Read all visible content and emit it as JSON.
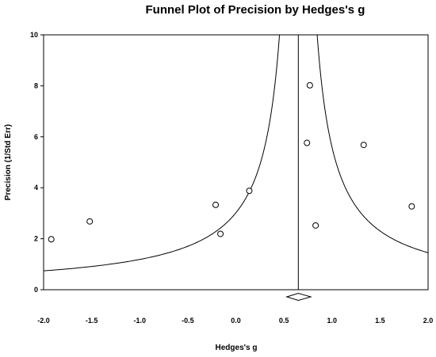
{
  "chart_data": {
    "type": "scatter",
    "title": "Funnel Plot of Precision by Hedges's g",
    "xlabel": "Hedges's g",
    "ylabel": "Precision (1/Std Err)",
    "xlim": [
      -2.0,
      2.0
    ],
    "ylim": [
      0,
      10
    ],
    "xticks": [
      "-2.0",
      "-1.5",
      "-1.0",
      "-0.5",
      "0.0",
      "0.5",
      "1.0",
      "1.5",
      "2.0"
    ],
    "yticks": [
      "0",
      "2",
      "4",
      "6",
      "8",
      "10"
    ],
    "grid": false,
    "pooled_estimate": 0.65,
    "diamond": {
      "center": 0.65,
      "lower": 0.53,
      "upper": 0.78
    },
    "points": [
      {
        "x": -1.92,
        "y": 1.98
      },
      {
        "x": -1.52,
        "y": 2.68
      },
      {
        "x": -0.21,
        "y": 3.33
      },
      {
        "x": -0.16,
        "y": 2.19
      },
      {
        "x": 0.14,
        "y": 3.88
      },
      {
        "x": 0.74,
        "y": 5.76
      },
      {
        "x": 0.77,
        "y": 8.02
      },
      {
        "x": 0.83,
        "y": 2.52
      },
      {
        "x": 1.33,
        "y": 5.68
      },
      {
        "x": 1.83,
        "y": 3.27
      }
    ],
    "funnel_ymin": 0.5
  }
}
